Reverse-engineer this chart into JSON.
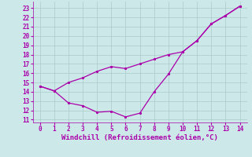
{
  "xlabel": "Windchill (Refroidissement éolien,°C)",
  "x_upper": [
    0,
    1,
    2,
    3,
    4,
    5,
    6,
    7,
    8,
    9,
    10,
    11,
    12,
    13,
    14
  ],
  "y_upper": [
    14.6,
    14.1,
    15.0,
    15.5,
    16.2,
    16.7,
    16.5,
    17.0,
    17.5,
    18.0,
    18.3,
    19.5,
    21.3,
    22.2,
    23.2
  ],
  "x_lower": [
    0,
    1,
    2,
    3,
    4,
    5,
    6,
    7,
    8,
    9,
    10,
    11,
    12,
    13,
    14
  ],
  "y_lower": [
    14.6,
    14.1,
    12.8,
    12.5,
    11.8,
    11.9,
    11.3,
    11.7,
    14.0,
    15.9,
    18.3,
    19.5,
    21.3,
    22.2,
    23.2
  ],
  "line_color": "#aa00aa",
  "bg_color": "#cce8e8",
  "grid_color": "#aacccc",
  "ylim": [
    10.7,
    23.7
  ],
  "xlim": [
    -0.5,
    14.5
  ],
  "yticks": [
    11,
    12,
    13,
    14,
    15,
    16,
    17,
    18,
    19,
    20,
    21,
    22,
    23
  ],
  "xticks": [
    0,
    1,
    2,
    3,
    4,
    5,
    6,
    7,
    8,
    9,
    10,
    11,
    12,
    13,
    14
  ],
  "xlabel_fontsize": 6.5,
  "tick_fontsize": 5.5,
  "line_width": 0.9,
  "marker_size": 3
}
